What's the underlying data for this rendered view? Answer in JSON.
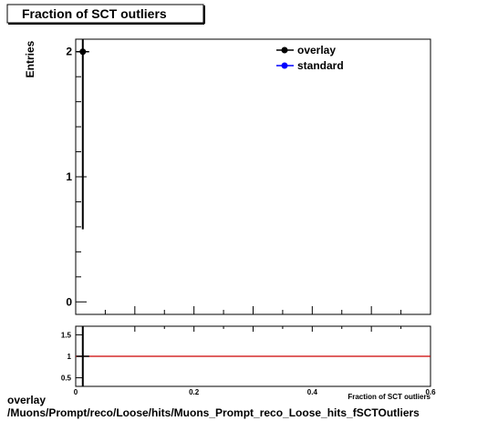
{
  "chart_data": [
    {
      "type": "scatter",
      "title": "Fraction of SCT outliers",
      "xlabel": "Fraction of SCT outliers",
      "ylabel": "Entries",
      "xlim": [
        0,
        0.6
      ],
      "ylim": [
        -0.1,
        2.1
      ],
      "x_ticks": [
        "0",
        "0.2",
        "0.4",
        "0.6"
      ],
      "y_ticks": [
        "0",
        "1",
        "2"
      ],
      "grid": false,
      "legend_position": "top-right",
      "series": [
        {
          "name": "overlay",
          "color": "#000000",
          "points": [
            {
              "x": 0.012,
              "y": 2,
              "err_low": 1.42,
              "err_high": 0.1
            }
          ]
        },
        {
          "name": "standard",
          "color": "#0000ff",
          "points": []
        }
      ]
    },
    {
      "type": "line",
      "xlim": [
        0,
        0.6
      ],
      "ylim": [
        0.3,
        1.7
      ],
      "y_ticks": [
        "0.5",
        "1",
        "1.5"
      ],
      "reference_line": {
        "y": 1,
        "color": "#cc0000"
      },
      "series": [
        {
          "color": "#000000",
          "points": [
            {
              "x": 0.012,
              "y": 1,
              "err": 1
            }
          ]
        }
      ]
    }
  ],
  "caption": {
    "line1": "overlay",
    "line2": "/Muons/Prompt/reco/Loose/hits/Muons_Prompt_reco_Loose_hits_fSCTOutliers"
  }
}
